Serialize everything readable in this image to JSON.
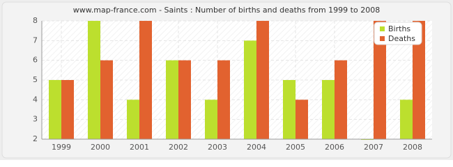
{
  "chart_data": {
    "type": "bar",
    "title": "www.map-france.com - Saints : Number of births and deaths from 1999 to 2008",
    "categories": [
      "1999",
      "2000",
      "2001",
      "2002",
      "2003",
      "2004",
      "2005",
      "2006",
      "2007",
      "2008"
    ],
    "series": [
      {
        "name": "Births",
        "color": "#bcdf2e",
        "values": [
          5,
          8,
          4,
          6,
          4,
          7,
          5,
          5,
          2,
          4
        ]
      },
      {
        "name": "Deaths",
        "color": "#e2622f",
        "values": [
          5,
          6,
          8,
          6,
          6,
          8,
          4,
          6,
          8,
          8
        ]
      }
    ],
    "ylim": [
      2,
      8
    ],
    "yticks": [
      2,
      3,
      4,
      5,
      6,
      7,
      8
    ],
    "grid": true,
    "legend": "top-right"
  }
}
